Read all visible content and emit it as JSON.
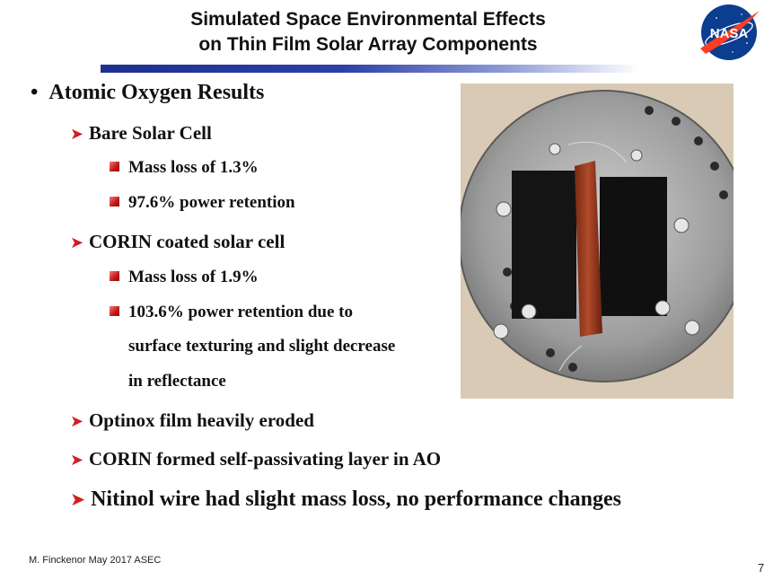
{
  "slide": {
    "title_line1": "Simulated Space Environmental Effects",
    "title_line2": "on Thin Film Solar Array Components",
    "logo_text": "NASA",
    "bullets": {
      "atomic_oxygen": "Atomic Oxygen Results",
      "bare_cell": "Bare Solar Cell",
      "bare_mass": "Mass loss of 1.3%",
      "bare_power": "97.6% power retention",
      "corin_cell": "CORIN coated solar cell",
      "corin_mass": "Mass loss of 1.9%",
      "corin_power_1": "103.6% power retention due to",
      "corin_power_2": "surface texturing and slight decrease",
      "corin_power_3": "in reflectance",
      "optinox": "Optinox film heavily eroded",
      "corin_layer": "CORIN formed self-passivating layer in AO",
      "nitinol": "Nitinol wire had slight mass loss, no performance changes"
    },
    "footer": "M. Finckenor  May 2017   ASEC",
    "page_number": "7"
  },
  "colors": {
    "title_bar": "#1f2f8f",
    "bullet_red": "#d31f1f",
    "nasa_blue": "#0b3d91",
    "nasa_red": "#fc3d21"
  }
}
